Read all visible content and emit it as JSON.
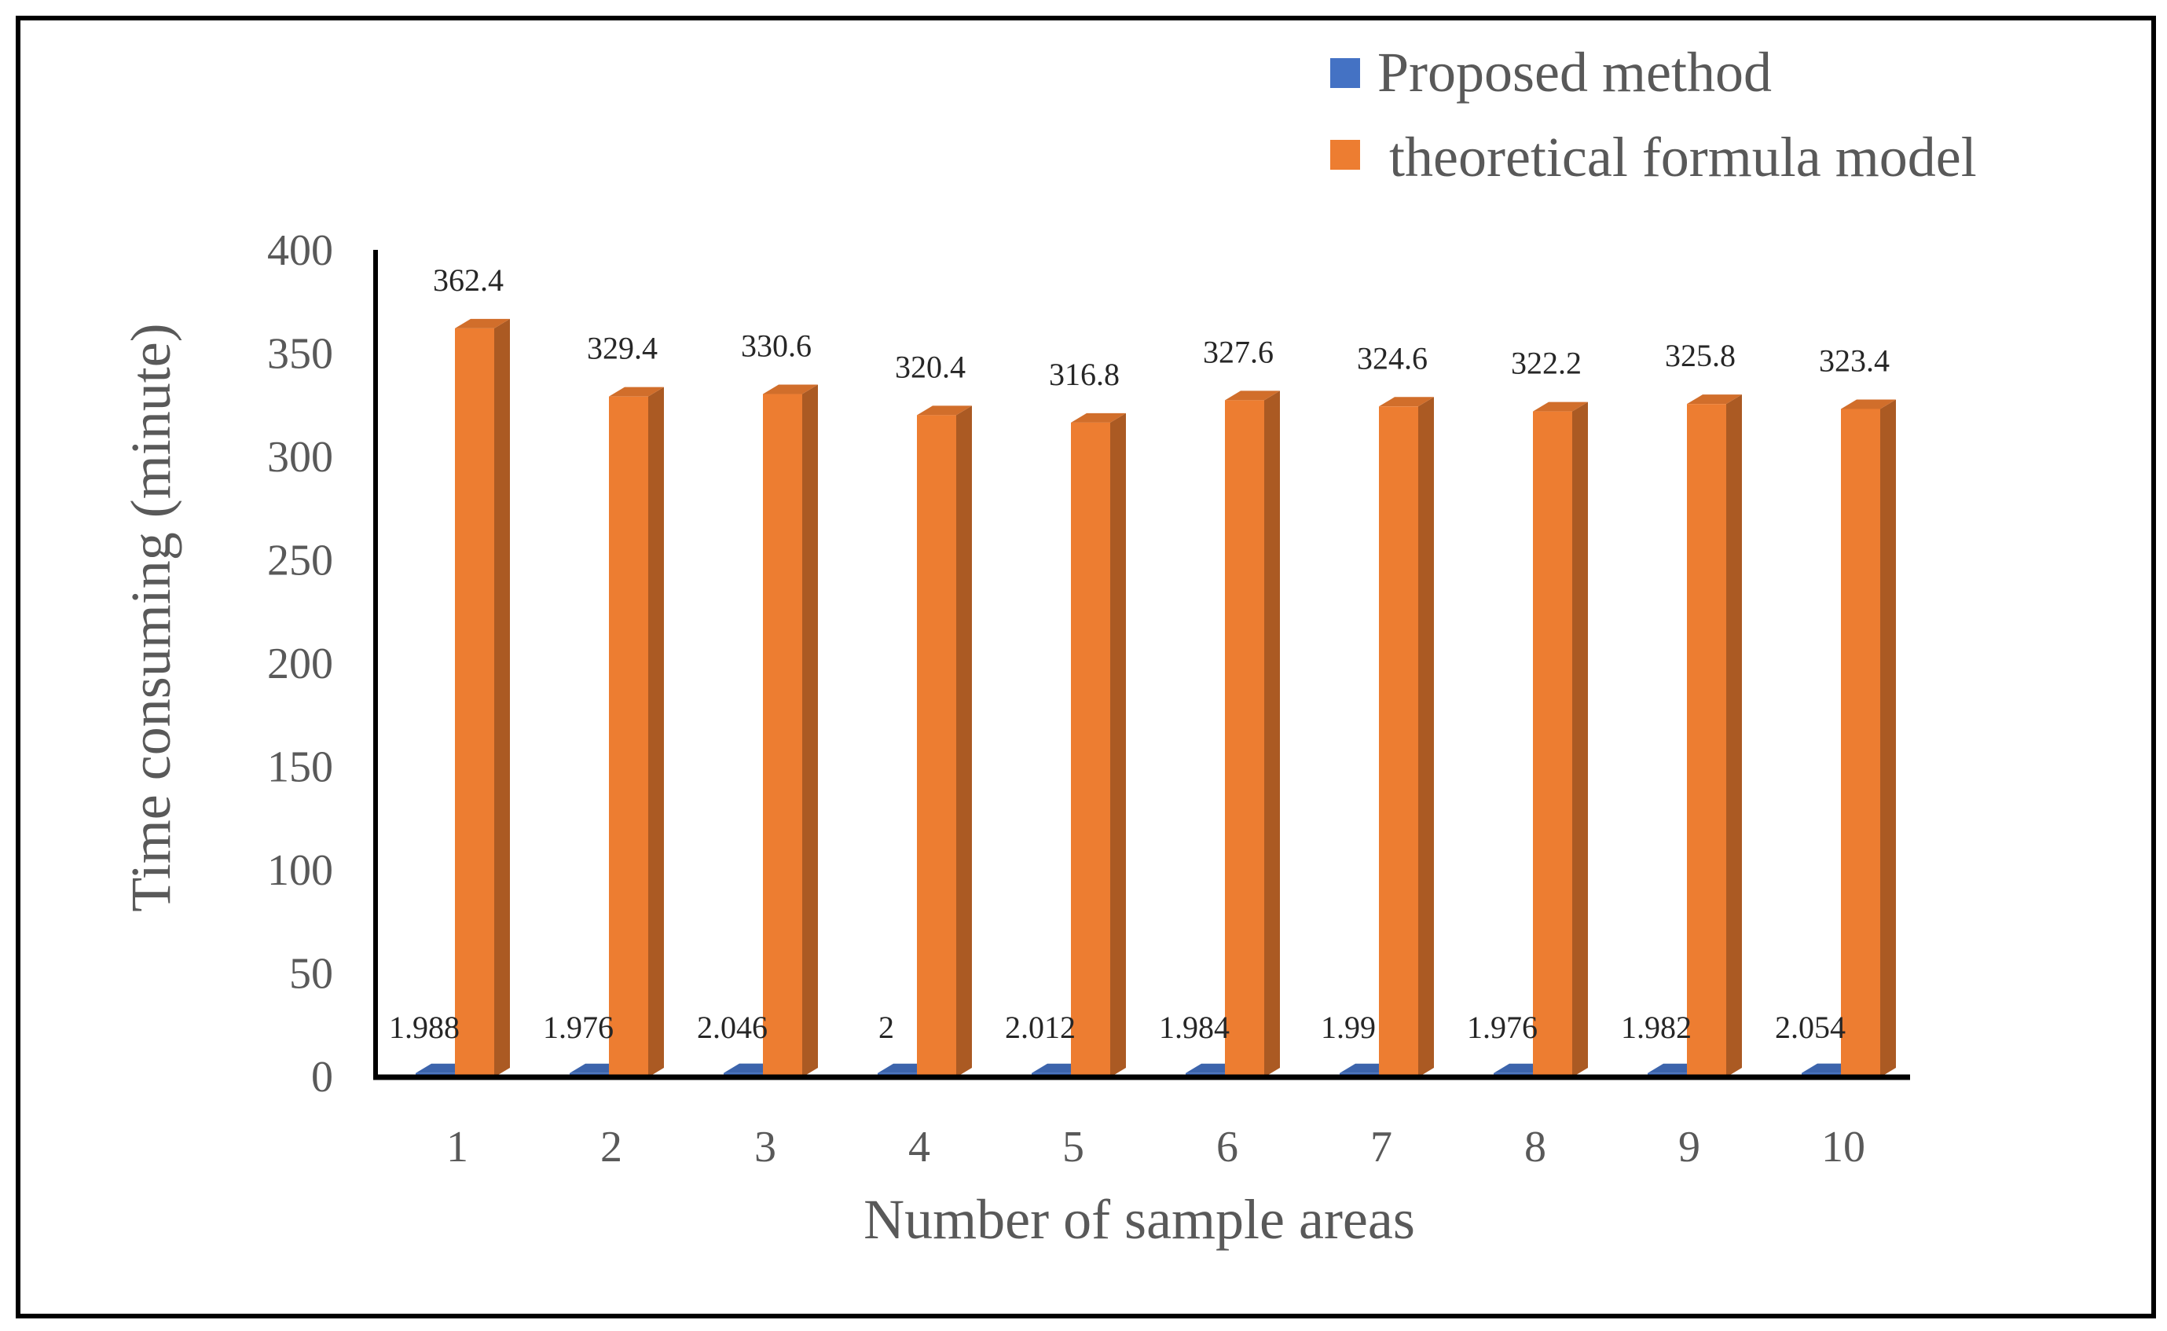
{
  "chart_data": {
    "type": "bar",
    "style": "3d-clustered-column",
    "title": "",
    "xlabel": "Number of sample areas",
    "ylabel": "Time consuming (minute)",
    "categories": [
      "1",
      "2",
      "3",
      "4",
      "5",
      "6",
      "7",
      "8",
      "9",
      "10"
    ],
    "ylim": [
      0,
      400
    ],
    "yticks": [
      "0",
      "50",
      "100",
      "150",
      "200",
      "250",
      "300",
      "350",
      "400"
    ],
    "grid": false,
    "legend_position": "top-right",
    "series": [
      {
        "name": "Proposed method",
        "color": "#4472C4",
        "values": [
          1.988,
          1.976,
          2.046,
          2,
          2.012,
          1.984,
          1.99,
          1.976,
          1.982,
          2.054
        ],
        "labels": [
          "1.988",
          "1.976",
          "2.046",
          "2",
          "2.012",
          "1.984",
          "1.99",
          "1.976",
          "1.982",
          "2.054"
        ]
      },
      {
        "name": "theoretical formula model",
        "color": "#ED7D31",
        "values": [
          362.4,
          329.4,
          330.6,
          320.4,
          316.8,
          327.6,
          324.6,
          322.2,
          325.8,
          323.4
        ],
        "labels": [
          "362.4",
          "329.4",
          "330.6",
          "320.4",
          "316.8",
          "327.6",
          "324.6",
          "322.2",
          "325.8",
          "323.4"
        ]
      }
    ]
  }
}
